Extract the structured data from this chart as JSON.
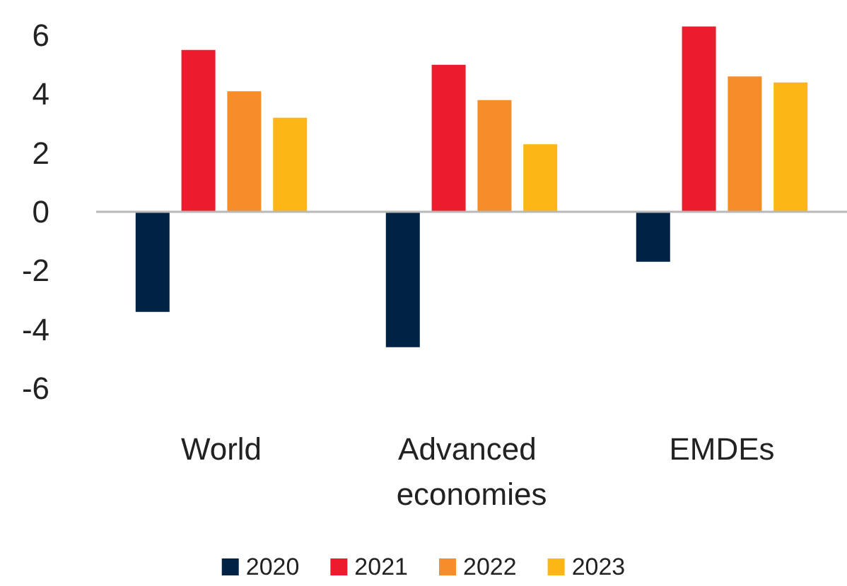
{
  "chart_data": {
    "type": "bar",
    "categories": [
      "World",
      "Advanced economies",
      "EMDEs"
    ],
    "series": [
      {
        "name": "2020",
        "color": "#002345",
        "values": [
          -3.4,
          -4.6,
          -1.7
        ]
      },
      {
        "name": "2021",
        "color": "#eb1c2d",
        "values": [
          5.5,
          5.0,
          6.3
        ]
      },
      {
        "name": "2022",
        "color": "#f78d28",
        "values": [
          4.1,
          3.8,
          4.6
        ]
      },
      {
        "name": "2023",
        "color": "#fdb714",
        "values": [
          3.2,
          2.3,
          4.4
        ]
      }
    ],
    "ylim": [
      -6,
      6.6
    ],
    "yticks": [
      -6,
      -4,
      -2,
      0,
      2,
      4,
      6
    ],
    "ref_lines": [
      {
        "axis": "y",
        "value": 0,
        "color": "#b8b8b8"
      }
    ],
    "legend": "bottom"
  }
}
